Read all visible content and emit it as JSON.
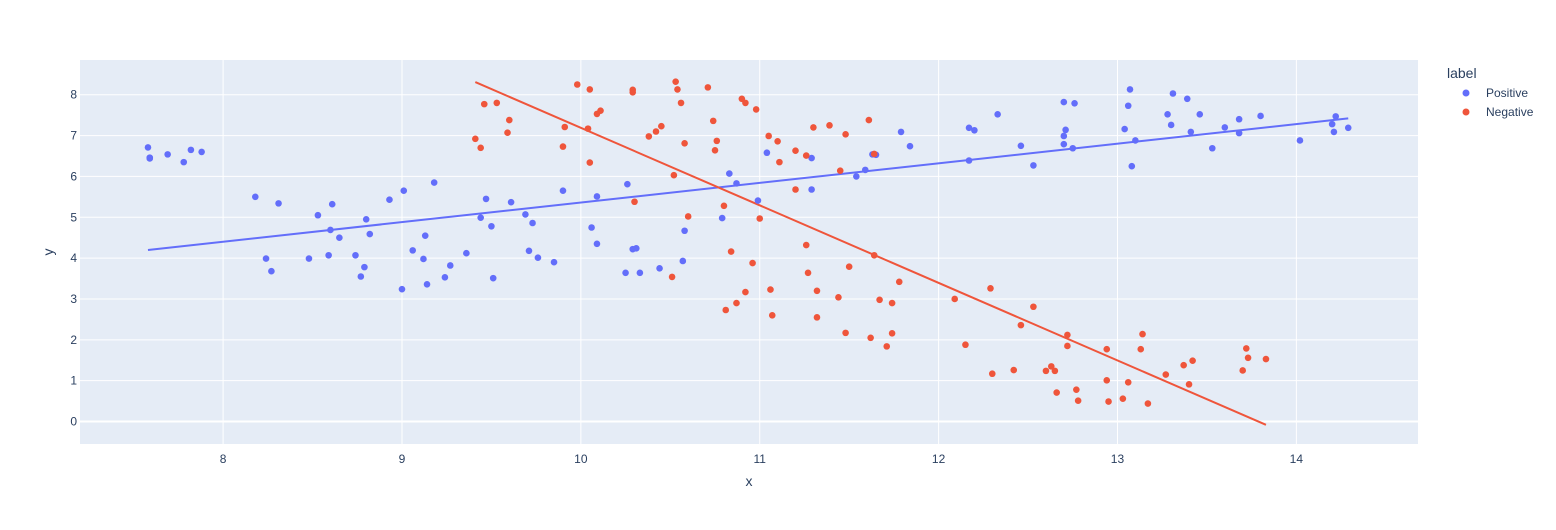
{
  "chart_data": {
    "type": "scatter",
    "title": "",
    "xlabel": "x",
    "ylabel": "y",
    "xlim": [
      7.2,
      14.68
    ],
    "ylim": [
      -0.55,
      8.85
    ],
    "x_ticks": [
      8,
      9,
      10,
      11,
      12,
      13,
      14
    ],
    "y_ticks": [
      0,
      1,
      2,
      3,
      4,
      5,
      6,
      7,
      8
    ],
    "grid": true,
    "legend_title": "label",
    "legend_position": "right",
    "background_color": "#E5ECF6",
    "series": [
      {
        "name": "Positive",
        "color": "#636EFA",
        "points": [
          [
            7.58,
            6.71
          ],
          [
            7.59,
            6.46
          ],
          [
            7.59,
            6.44
          ],
          [
            7.69,
            6.54
          ],
          [
            7.78,
            6.35
          ],
          [
            7.82,
            6.65
          ],
          [
            7.88,
            6.6
          ],
          [
            8.18,
            5.5
          ],
          [
            8.24,
            3.99
          ],
          [
            8.27,
            3.68
          ],
          [
            8.31,
            5.34
          ],
          [
            8.48,
            3.99
          ],
          [
            8.53,
            5.05
          ],
          [
            8.59,
            4.07
          ],
          [
            8.6,
            4.69
          ],
          [
            8.61,
            5.32
          ],
          [
            8.65,
            4.5
          ],
          [
            8.74,
            4.07
          ],
          [
            8.77,
            3.55
          ],
          [
            8.79,
            3.78
          ],
          [
            8.8,
            4.95
          ],
          [
            8.82,
            4.59
          ],
          [
            8.93,
            5.43
          ],
          [
            9.0,
            3.24
          ],
          [
            9.01,
            5.65
          ],
          [
            9.06,
            4.19
          ],
          [
            9.12,
            3.98
          ],
          [
            9.13,
            4.55
          ],
          [
            9.14,
            3.36
          ],
          [
            9.18,
            5.85
          ],
          [
            9.24,
            3.53
          ],
          [
            9.27,
            3.82
          ],
          [
            9.36,
            4.12
          ],
          [
            9.44,
            4.99
          ],
          [
            9.47,
            5.45
          ],
          [
            9.5,
            4.78
          ],
          [
            9.51,
            3.51
          ],
          [
            9.61,
            5.37
          ],
          [
            9.69,
            5.07
          ],
          [
            9.71,
            4.18
          ],
          [
            9.73,
            4.86
          ],
          [
            9.76,
            4.01
          ],
          [
            9.85,
            3.9
          ],
          [
            9.9,
            5.65
          ],
          [
            10.06,
            4.75
          ],
          [
            10.09,
            5.51
          ],
          [
            10.09,
            4.35
          ],
          [
            10.25,
            3.64
          ],
          [
            10.26,
            5.81
          ],
          [
            10.29,
            4.22
          ],
          [
            10.31,
            4.24
          ],
          [
            10.33,
            3.64
          ],
          [
            10.44,
            3.75
          ],
          [
            10.57,
            3.93
          ],
          [
            10.58,
            4.67
          ],
          [
            10.79,
            4.98
          ],
          [
            10.83,
            6.07
          ],
          [
            10.87,
            5.83
          ],
          [
            10.99,
            5.41
          ],
          [
            11.04,
            6.58
          ],
          [
            11.29,
            6.45
          ],
          [
            11.29,
            5.68
          ],
          [
            11.54,
            6.0
          ],
          [
            11.59,
            6.16
          ],
          [
            11.63,
            6.54
          ],
          [
            11.65,
            6.53
          ],
          [
            11.79,
            7.09
          ],
          [
            11.84,
            6.74
          ],
          [
            12.17,
            6.39
          ],
          [
            12.17,
            7.19
          ],
          [
            12.2,
            7.13
          ],
          [
            12.33,
            7.52
          ],
          [
            12.46,
            6.75
          ],
          [
            12.53,
            6.27
          ],
          [
            12.7,
            6.99
          ],
          [
            12.7,
            7.82
          ],
          [
            12.71,
            7.14
          ],
          [
            12.7,
            6.79
          ],
          [
            12.75,
            6.69
          ],
          [
            12.76,
            7.79
          ],
          [
            13.04,
            7.16
          ],
          [
            13.06,
            7.73
          ],
          [
            13.07,
            8.13
          ],
          [
            13.08,
            6.25
          ],
          [
            13.1,
            6.88
          ],
          [
            13.28,
            7.52
          ],
          [
            13.3,
            7.26
          ],
          [
            13.31,
            8.03
          ],
          [
            13.39,
            7.9
          ],
          [
            13.41,
            7.09
          ],
          [
            13.46,
            7.52
          ],
          [
            13.53,
            6.69
          ],
          [
            13.6,
            7.2
          ],
          [
            13.68,
            7.4
          ],
          [
            13.68,
            7.06
          ],
          [
            13.8,
            7.48
          ],
          [
            14.02,
            6.88
          ],
          [
            14.2,
            7.28
          ],
          [
            14.22,
            7.47
          ],
          [
            14.21,
            7.09
          ],
          [
            14.29,
            7.19
          ]
        ],
        "trendline": [
          [
            7.58,
            4.2
          ],
          [
            14.29,
            7.42
          ]
        ]
      },
      {
        "name": "Negative",
        "color": "#EF553B",
        "points": [
          [
            9.41,
            6.92
          ],
          [
            9.44,
            6.7
          ],
          [
            9.46,
            7.77
          ],
          [
            9.53,
            7.8
          ],
          [
            9.59,
            7.07
          ],
          [
            9.6,
            7.38
          ],
          [
            9.9,
            6.73
          ],
          [
            9.91,
            7.21
          ],
          [
            9.98,
            8.25
          ],
          [
            10.04,
            7.17
          ],
          [
            10.05,
            8.13
          ],
          [
            10.05,
            6.34
          ],
          [
            10.09,
            7.53
          ],
          [
            10.11,
            7.61
          ],
          [
            10.29,
            8.12
          ],
          [
            10.29,
            8.06
          ],
          [
            10.3,
            5.38
          ],
          [
            10.38,
            6.98
          ],
          [
            10.42,
            7.1
          ],
          [
            10.45,
            7.23
          ],
          [
            10.51,
            3.54
          ],
          [
            10.52,
            6.03
          ],
          [
            10.53,
            8.32
          ],
          [
            10.54,
            8.13
          ],
          [
            10.56,
            7.8
          ],
          [
            10.58,
            6.81
          ],
          [
            10.6,
            5.02
          ],
          [
            10.71,
            8.18
          ],
          [
            10.74,
            7.36
          ],
          [
            10.75,
            6.64
          ],
          [
            10.76,
            6.87
          ],
          [
            10.8,
            5.28
          ],
          [
            10.81,
            2.73
          ],
          [
            10.84,
            4.16
          ],
          [
            10.87,
            2.9
          ],
          [
            10.9,
            7.9
          ],
          [
            10.92,
            7.8
          ],
          [
            10.92,
            3.17
          ],
          [
            10.96,
            3.88
          ],
          [
            10.98,
            7.64
          ],
          [
            11.0,
            4.97
          ],
          [
            11.05,
            6.99
          ],
          [
            11.06,
            3.23
          ],
          [
            11.07,
            2.6
          ],
          [
            11.1,
            6.86
          ],
          [
            11.11,
            6.35
          ],
          [
            11.2,
            6.63
          ],
          [
            11.2,
            5.68
          ],
          [
            11.26,
            6.51
          ],
          [
            11.26,
            4.32
          ],
          [
            11.27,
            3.64
          ],
          [
            11.3,
            7.2
          ],
          [
            11.32,
            3.2
          ],
          [
            11.32,
            2.55
          ],
          [
            11.39,
            7.25
          ],
          [
            11.44,
            3.04
          ],
          [
            11.45,
            6.14
          ],
          [
            11.48,
            7.03
          ],
          [
            11.48,
            2.17
          ],
          [
            11.5,
            3.79
          ],
          [
            11.61,
            7.38
          ],
          [
            11.62,
            2.05
          ],
          [
            11.64,
            6.55
          ],
          [
            11.64,
            4.07
          ],
          [
            11.67,
            2.98
          ],
          [
            11.71,
            1.84
          ],
          [
            11.74,
            2.9
          ],
          [
            11.74,
            2.16
          ],
          [
            11.78,
            3.42
          ],
          [
            12.09,
            3.0
          ],
          [
            12.15,
            1.88
          ],
          [
            12.29,
            3.26
          ],
          [
            12.3,
            1.17
          ],
          [
            12.42,
            1.26
          ],
          [
            12.46,
            2.36
          ],
          [
            12.53,
            2.81
          ],
          [
            12.6,
            1.24
          ],
          [
            12.63,
            1.35
          ],
          [
            12.65,
            1.24
          ],
          [
            12.66,
            0.71
          ],
          [
            12.72,
            2.12
          ],
          [
            12.72,
            1.85
          ],
          [
            12.77,
            0.78
          ],
          [
            12.78,
            0.51
          ],
          [
            12.94,
            1.77
          ],
          [
            12.94,
            1.01
          ],
          [
            12.95,
            0.49
          ],
          [
            13.03,
            0.56
          ],
          [
            13.06,
            0.96
          ],
          [
            13.13,
            1.77
          ],
          [
            13.14,
            2.14
          ],
          [
            13.17,
            0.44
          ],
          [
            13.27,
            1.15
          ],
          [
            13.37,
            1.38
          ],
          [
            13.4,
            0.91
          ],
          [
            13.42,
            1.49
          ],
          [
            13.7,
            1.25
          ],
          [
            13.72,
            1.79
          ],
          [
            13.73,
            1.56
          ],
          [
            13.83,
            1.53
          ]
        ],
        "trendline": [
          [
            9.41,
            8.31
          ],
          [
            13.83,
            -0.08
          ]
        ]
      }
    ]
  }
}
